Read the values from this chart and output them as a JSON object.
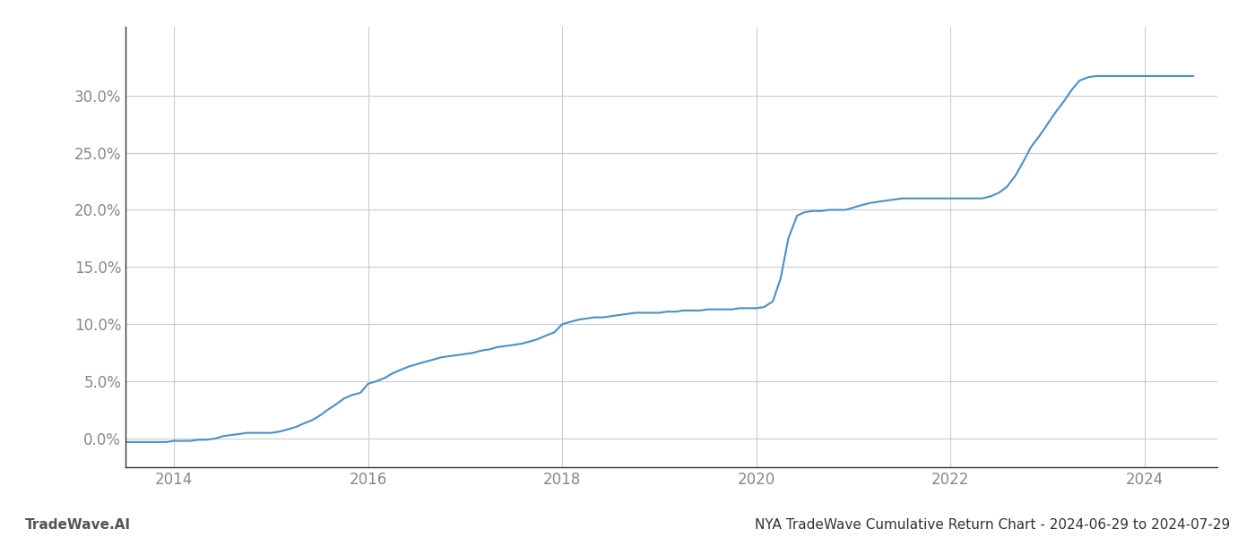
{
  "title": "",
  "footer_left": "TradeWave.AI",
  "footer_right": "NYA TradeWave Cumulative Return Chart - 2024-06-29 to 2024-07-29",
  "line_color": "#4A90C4",
  "background_color": "#ffffff",
  "grid_color": "#cccccc",
  "x_years": [
    2013.5,
    2013.58,
    2013.67,
    2013.75,
    2013.83,
    2013.92,
    2014.0,
    2014.08,
    2014.17,
    2014.25,
    2014.33,
    2014.42,
    2014.5,
    2014.58,
    2014.67,
    2014.75,
    2014.83,
    2014.92,
    2015.0,
    2015.08,
    2015.17,
    2015.25,
    2015.33,
    2015.42,
    2015.5,
    2015.58,
    2015.67,
    2015.75,
    2015.83,
    2015.92,
    2016.0,
    2016.08,
    2016.17,
    2016.25,
    2016.33,
    2016.42,
    2016.5,
    2016.58,
    2016.67,
    2016.75,
    2016.83,
    2016.92,
    2017.0,
    2017.08,
    2017.17,
    2017.25,
    2017.33,
    2017.42,
    2017.5,
    2017.58,
    2017.67,
    2017.75,
    2017.83,
    2017.92,
    2018.0,
    2018.08,
    2018.17,
    2018.25,
    2018.33,
    2018.42,
    2018.5,
    2018.58,
    2018.67,
    2018.75,
    2018.83,
    2018.92,
    2019.0,
    2019.08,
    2019.17,
    2019.25,
    2019.33,
    2019.42,
    2019.5,
    2019.58,
    2019.67,
    2019.75,
    2019.83,
    2019.92,
    2020.0,
    2020.08,
    2020.17,
    2020.25,
    2020.33,
    2020.42,
    2020.5,
    2020.58,
    2020.67,
    2020.75,
    2020.83,
    2020.92,
    2021.0,
    2021.08,
    2021.17,
    2021.25,
    2021.33,
    2021.42,
    2021.5,
    2021.58,
    2021.67,
    2021.75,
    2021.83,
    2021.92,
    2022.0,
    2022.08,
    2022.17,
    2022.25,
    2022.33,
    2022.42,
    2022.5,
    2022.58,
    2022.67,
    2022.75,
    2022.83,
    2022.92,
    2023.0,
    2023.08,
    2023.17,
    2023.25,
    2023.33,
    2023.42,
    2023.5,
    2023.58,
    2023.67,
    2023.75,
    2023.83,
    2023.92,
    2024.0,
    2024.08,
    2024.17,
    2024.25,
    2024.33,
    2024.42,
    2024.5
  ],
  "y_values": [
    -0.003,
    -0.003,
    -0.003,
    -0.003,
    -0.003,
    -0.003,
    -0.002,
    -0.002,
    -0.002,
    -0.001,
    -0.001,
    0.0,
    0.002,
    0.003,
    0.004,
    0.005,
    0.005,
    0.005,
    0.005,
    0.006,
    0.008,
    0.01,
    0.013,
    0.016,
    0.02,
    0.025,
    0.03,
    0.035,
    0.038,
    0.04,
    0.048,
    0.05,
    0.053,
    0.057,
    0.06,
    0.063,
    0.065,
    0.067,
    0.069,
    0.071,
    0.072,
    0.073,
    0.074,
    0.075,
    0.077,
    0.078,
    0.08,
    0.081,
    0.082,
    0.083,
    0.085,
    0.087,
    0.09,
    0.093,
    0.1,
    0.102,
    0.104,
    0.105,
    0.106,
    0.106,
    0.107,
    0.108,
    0.109,
    0.11,
    0.11,
    0.11,
    0.11,
    0.111,
    0.111,
    0.112,
    0.112,
    0.112,
    0.113,
    0.113,
    0.113,
    0.113,
    0.114,
    0.114,
    0.114,
    0.115,
    0.12,
    0.14,
    0.175,
    0.195,
    0.198,
    0.199,
    0.199,
    0.2,
    0.2,
    0.2,
    0.202,
    0.204,
    0.206,
    0.207,
    0.208,
    0.209,
    0.21,
    0.21,
    0.21,
    0.21,
    0.21,
    0.21,
    0.21,
    0.21,
    0.21,
    0.21,
    0.21,
    0.212,
    0.215,
    0.22,
    0.23,
    0.242,
    0.255,
    0.265,
    0.275,
    0.285,
    0.295,
    0.305,
    0.313,
    0.316,
    0.317,
    0.317,
    0.317,
    0.317,
    0.317,
    0.317,
    0.317,
    0.317,
    0.317,
    0.317,
    0.317,
    0.317,
    0.317
  ],
  "xlim": [
    2013.5,
    2024.75
  ],
  "ylim": [
    -0.025,
    0.36
  ],
  "yticks": [
    0.0,
    0.05,
    0.1,
    0.15,
    0.2,
    0.25,
    0.3
  ],
  "xticks": [
    2014,
    2016,
    2018,
    2020,
    2022,
    2024
  ],
  "tick_color": "#888888",
  "spine_color": "#333333",
  "footer_fontsize": 11,
  "tick_fontsize": 12
}
